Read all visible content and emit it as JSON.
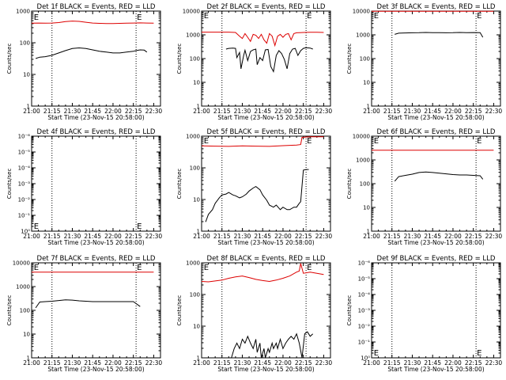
{
  "figure": {
    "x_tick_labels": [
      "21:00",
      "21:15",
      "21:30",
      "21:45",
      "22:00",
      "22:15",
      "22:30"
    ],
    "xlabel": "Start Time (23-Nov-15 20:58:00)",
    "ylabel": "Counts/sec",
    "colors": {
      "events": "#000000",
      "lld": "#dd0000"
    }
  },
  "chart_data": [
    {
      "type": "line",
      "title": "Det 1f BLACK = Events, RED = LLD",
      "x_range_min": [
        0,
        95
      ],
      "ylim": [
        1,
        2000
      ],
      "y_scale": "log",
      "y_tick_labels": [
        "1",
        "10",
        "100",
        "1000"
      ],
      "dotted_lines_min": [
        15,
        77
      ],
      "markers": [
        {
          "x_min": 1,
          "label": "E",
          "y": 1300
        },
        {
          "x_min": 77,
          "label": "E",
          "y": 1300
        }
      ],
      "series": [
        {
          "name": "LLD",
          "color": "#dd0000",
          "x_min": [
            0,
            5,
            10,
            15,
            20,
            25,
            30,
            35,
            40,
            45,
            50,
            55,
            60,
            65,
            70,
            75,
            80,
            85,
            90
          ],
          "y": [
            760,
            770,
            760,
            770,
            800,
            860,
            900,
            880,
            820,
            770,
            750,
            740,
            740,
            750,
            760,
            770,
            780,
            770,
            760
          ]
        },
        {
          "name": "Events",
          "color": "#000000",
          "x_min": [
            3,
            6,
            10,
            15,
            20,
            25,
            30,
            35,
            40,
            45,
            50,
            55,
            60,
            65,
            70,
            75,
            77,
            80,
            83,
            85
          ],
          "y": [
            45,
            50,
            52,
            58,
            70,
            85,
            100,
            105,
            100,
            90,
            80,
            75,
            70,
            70,
            75,
            80,
            85,
            90,
            88,
            75
          ]
        }
      ]
    },
    {
      "type": "line",
      "title": "Det 2f BLACK = Events, RED = LLD",
      "x_range_min": [
        0,
        95
      ],
      "ylim": [
        1,
        12000
      ],
      "y_scale": "log",
      "y_tick_labels": [
        "1",
        "10",
        "100",
        "1000",
        "10000"
      ],
      "dotted_lines_min": [
        15,
        77
      ],
      "markers": [
        {
          "x_min": 1,
          "label": "E",
          "y": 8000
        },
        {
          "x_min": 77,
          "label": "E",
          "y": 8000
        }
      ],
      "series": [
        {
          "name": "LLD",
          "color": "#dd0000",
          "x_min": [
            0,
            5,
            10,
            15,
            20,
            25,
            28,
            30,
            32,
            34,
            36,
            38,
            40,
            42,
            44,
            46,
            48,
            50,
            52,
            54,
            56,
            58,
            60,
            62,
            64,
            66,
            68,
            70,
            75,
            80,
            85,
            90
          ],
          "y": [
            1500,
            1500,
            1500,
            1500,
            1500,
            1450,
            1000,
            800,
            1300,
            900,
            600,
            1200,
            1100,
            800,
            1200,
            700,
            500,
            1300,
            1000,
            400,
            1000,
            1200,
            900,
            1200,
            1300,
            700,
            1300,
            1400,
            1450,
            1480,
            1470,
            1450
          ]
        },
        {
          "name": "Events",
          "color": "#000000",
          "x_min": [
            18,
            20,
            23,
            25,
            26,
            28,
            29,
            31,
            32,
            34,
            36,
            38,
            40,
            41,
            43,
            45,
            47,
            49,
            51,
            53,
            55,
            57,
            59,
            61,
            63,
            65,
            67,
            69,
            71,
            73,
            75,
            77,
            80,
            82
          ],
          "y": [
            280,
            300,
            310,
            300,
            120,
            200,
            40,
            150,
            250,
            90,
            220,
            260,
            280,
            60,
            120,
            90,
            260,
            270,
            50,
            30,
            150,
            240,
            180,
            100,
            40,
            180,
            280,
            300,
            150,
            240,
            300,
            320,
            310,
            280
          ]
        }
      ]
    },
    {
      "type": "line",
      "title": "Det 3f BLACK = Events, RED = LLD",
      "x_range_min": [
        0,
        95
      ],
      "ylim": [
        1,
        12000
      ],
      "y_scale": "log",
      "y_tick_labels": [
        "1",
        "10",
        "100",
        "1000",
        "10000"
      ],
      "dotted_lines_min": [
        15,
        77
      ],
      "markers": [
        {
          "x_min": 1,
          "label": "E",
          "y": 8000
        },
        {
          "x_min": 77,
          "label": "E",
          "y": 8000
        }
      ],
      "series": [
        {
          "name": "LLD",
          "color": "#dd0000",
          "x_min": [
            0,
            10,
            20,
            30,
            40,
            50,
            60,
            70,
            80,
            90
          ],
          "y": [
            11800,
            11800,
            11800,
            11800,
            11800,
            11800,
            11800,
            11800,
            11800,
            11800
          ]
        },
        {
          "name": "Events",
          "color": "#000000",
          "x_min": [
            17,
            20,
            25,
            30,
            35,
            40,
            45,
            50,
            55,
            60,
            65,
            70,
            75,
            80,
            82
          ],
          "y": [
            1200,
            1350,
            1380,
            1400,
            1420,
            1450,
            1430,
            1420,
            1400,
            1420,
            1450,
            1430,
            1440,
            1420,
            900
          ]
        }
      ]
    },
    {
      "type": "line",
      "title": "Det 4f BLACK = Events, RED = LLD",
      "x_range_min": [
        0,
        95
      ],
      "ylim": [
        1,
        1.000001
      ],
      "y_scale": "log",
      "y_tick_labels": [
        "10⁰",
        "10⁻¹",
        "10⁻²",
        "10⁻³",
        "10⁻⁴",
        "10⁻⁵",
        "10⁻⁶"
      ],
      "dotted_lines_min": [
        15,
        77
      ],
      "markers": [
        {
          "x_min": 1,
          "label": "E",
          "y_frac": 0.06
        },
        {
          "x_min": 77,
          "label": "E",
          "y_frac": 0.06
        }
      ],
      "series": []
    },
    {
      "type": "line",
      "title": "Det 5f BLACK = Events, RED = LLD",
      "x_range_min": [
        0,
        95
      ],
      "ylim": [
        1,
        1200
      ],
      "y_scale": "log",
      "y_tick_labels": [
        "1",
        "10",
        "100",
        "1000"
      ],
      "dotted_lines_min": [
        15,
        77
      ],
      "markers": [
        {
          "x_min": 1,
          "label": "E",
          "y": 900
        },
        {
          "x_min": 77,
          "label": "E",
          "y": 900
        }
      ],
      "series": [
        {
          "name": "LLD",
          "color": "#dd0000",
          "x_min": [
            0,
            10,
            20,
            30,
            40,
            50,
            60,
            70,
            73,
            74,
            80,
            85,
            90
          ],
          "y": [
            580,
            570,
            560,
            580,
            570,
            560,
            590,
            620,
            640,
            1100,
            1150,
            1150,
            1150
          ]
        },
        {
          "name": "Events",
          "color": "#000000",
          "x_min": [
            3,
            5,
            8,
            10,
            13,
            15,
            18,
            20,
            23,
            25,
            28,
            30,
            33,
            35,
            38,
            40,
            43,
            45,
            48,
            50,
            53,
            55,
            58,
            60,
            63,
            65,
            68,
            70,
            72,
            73,
            75,
            77,
            79
          ],
          "y": [
            2,
            3.5,
            5,
            8,
            12,
            15,
            16,
            18,
            15,
            14,
            12,
            13,
            16,
            20,
            25,
            28,
            22,
            15,
            10,
            7,
            6,
            7,
            5,
            6,
            5,
            5,
            6,
            6,
            8,
            9,
            95,
            100,
            100
          ]
        }
      ]
    },
    {
      "type": "line",
      "title": "Det 6f BLACK = Events, RED = LLD",
      "x_range_min": [
        0,
        95
      ],
      "ylim": [
        1,
        12000
      ],
      "y_scale": "log",
      "y_tick_labels": [
        "1",
        "10",
        "100",
        "1000",
        "10000"
      ],
      "dotted_lines_min": [
        15,
        77
      ],
      "markers": [
        {
          "x_min": 1,
          "label": "E",
          "y": 8000
        },
        {
          "x_min": 77,
          "label": "E",
          "y": 8000
        }
      ],
      "series": [
        {
          "name": "LLD",
          "color": "#dd0000",
          "x_min": [
            0,
            10,
            20,
            30,
            40,
            50,
            60,
            70,
            80,
            90
          ],
          "y": [
            3000,
            3000,
            3000,
            3000,
            3000,
            3000,
            3000,
            3000,
            3000,
            3000
          ]
        },
        {
          "name": "Events",
          "color": "#000000",
          "x_min": [
            17,
            20,
            25,
            30,
            35,
            40,
            45,
            50,
            55,
            60,
            65,
            70,
            75,
            80,
            82
          ],
          "y": [
            140,
            220,
            250,
            280,
            330,
            350,
            330,
            310,
            290,
            270,
            260,
            260,
            250,
            240,
            170
          ]
        }
      ]
    },
    {
      "type": "line",
      "title": "Det 7f BLACK = Events, RED = LLD",
      "x_range_min": [
        0,
        95
      ],
      "ylim": [
        1,
        12000
      ],
      "y_scale": "log",
      "y_tick_labels": [
        "1",
        "10",
        "100",
        "1000",
        "10000"
      ],
      "dotted_lines_min": [
        15,
        77
      ],
      "markers": [
        {
          "x_min": 1,
          "label": "E",
          "y": 8000
        },
        {
          "x_min": 77,
          "label": "E",
          "y": 8000
        }
      ],
      "series": [
        {
          "name": "LLD",
          "color": "#dd0000",
          "x_min": [
            0,
            10,
            20,
            30,
            40,
            50,
            60,
            70,
            80,
            90
          ],
          "y": [
            4800,
            4800,
            4800,
            4800,
            4800,
            4800,
            4800,
            4800,
            4800,
            4800
          ]
        },
        {
          "name": "Events",
          "color": "#000000",
          "x_min": [
            3,
            6,
            10,
            15,
            20,
            25,
            30,
            35,
            40,
            45,
            50,
            55,
            60,
            65,
            70,
            75,
            80
          ],
          "y": [
            140,
            250,
            260,
            270,
            290,
            310,
            300,
            280,
            270,
            260,
            260,
            260,
            260,
            260,
            260,
            260,
            160
          ]
        }
      ]
    },
    {
      "type": "line",
      "title": "Det 8f BLACK = Events, RED = LLD",
      "x_range_min": [
        0,
        95
      ],
      "ylim": [
        1,
        1200
      ],
      "y_scale": "log",
      "y_tick_labels": [
        "1",
        "10",
        "100",
        "1000"
      ],
      "dotted_lines_min": [
        15,
        77
      ],
      "markers": [
        {
          "x_min": 1,
          "label": "E",
          "y": 900
        },
        {
          "x_min": 77,
          "label": "E",
          "y": 900
        }
      ],
      "series": [
        {
          "name": "LLD",
          "color": "#dd0000",
          "x_min": [
            0,
            5,
            10,
            15,
            20,
            25,
            30,
            35,
            40,
            45,
            50,
            55,
            60,
            65,
            70,
            72,
            73,
            75,
            80,
            85,
            90
          ],
          "y": [
            300,
            290,
            310,
            330,
            380,
            420,
            450,
            400,
            350,
            320,
            300,
            330,
            380,
            450,
            600,
            650,
            1150,
            550,
            600,
            550,
            500
          ]
        },
        {
          "name": "Events",
          "color": "#000000",
          "x_min": [
            20,
            22,
            24,
            26,
            28,
            30,
            32,
            34,
            36,
            38,
            40,
            41,
            43,
            44,
            46,
            47,
            49,
            50,
            52,
            53,
            55,
            56,
            58,
            60,
            62,
            64,
            66,
            68,
            70,
            72,
            74,
            76,
            78,
            80,
            82
          ],
          "y": [
            1,
            1,
            2,
            3,
            2,
            4,
            3,
            5,
            3,
            2,
            4,
            1.5,
            3,
            1,
            2,
            1,
            2,
            1.5,
            3,
            2,
            3,
            2,
            4,
            2,
            3,
            4,
            5,
            4,
            6,
            3,
            1,
            6,
            7,
            5,
            6
          ]
        }
      ]
    },
    {
      "type": "line",
      "title": "Det 9f BLACK = Events, RED = LLD",
      "x_range_min": [
        0,
        95
      ],
      "ylim": [
        1,
        1.000001
      ],
      "y_scale": "log",
      "y_tick_labels": [
        "10⁰",
        "10⁻¹",
        "10⁻²",
        "10⁻³",
        "10⁻⁴",
        "10⁻⁵",
        "10⁻⁶"
      ],
      "dotted_lines_min": [
        15,
        77
      ],
      "markers": [
        {
          "x_min": 1,
          "label": "E",
          "y_frac": 0.06
        },
        {
          "x_min": 77,
          "label": "E",
          "y_frac": 0.06
        }
      ],
      "series": []
    }
  ]
}
